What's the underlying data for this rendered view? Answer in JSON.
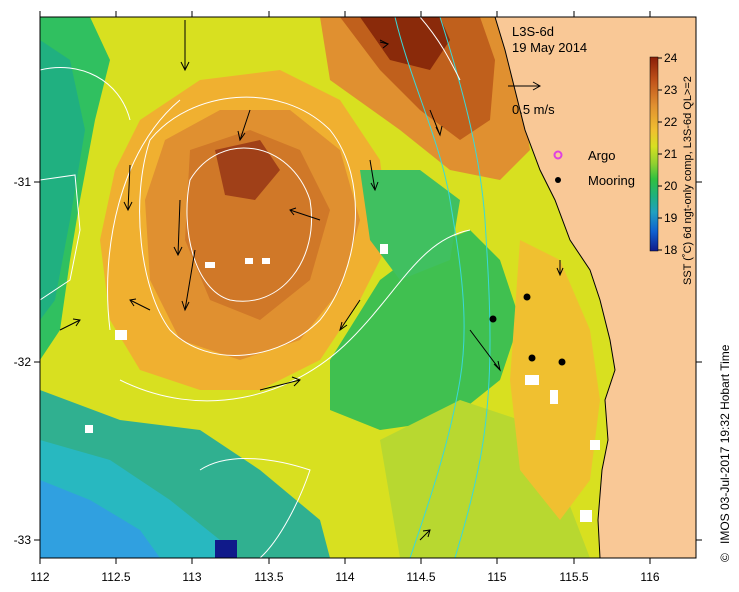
{
  "product": "L3S-6d",
  "date": "19 May 2014",
  "scale_label": "0.5 m/s",
  "legend": {
    "argo_label": "Argo",
    "mooring_label": "Mooring",
    "argo_color": "#e040e0",
    "mooring_color": "#000000"
  },
  "colorbar": {
    "title": "SST (˚C) 6d ngt-only comp, L3S-6d QL>=2",
    "ticks": [
      "24",
      "23",
      "22",
      "21",
      "20",
      "19",
      "18"
    ],
    "colors": [
      "#8a1e08",
      "#c0521a",
      "#e09030",
      "#f0c030",
      "#d8e020",
      "#90d030",
      "#30c040",
      "#20b080",
      "#20a0c0",
      "#1060d0",
      "#101a8a"
    ]
  },
  "x_axis": {
    "ticks": [
      "112",
      "112.5",
      "113",
      "113.5",
      "114",
      "114.5",
      "115",
      "115.5",
      "116"
    ]
  },
  "y_axis": {
    "ticks": [
      "-31",
      "-32",
      "-33"
    ]
  },
  "credit": "IMOS 03-Jul-2017 19:32 Hobart Time",
  "copyright_symbol": "©",
  "colors": {
    "land": "#f9c896",
    "frame": "#000000"
  }
}
